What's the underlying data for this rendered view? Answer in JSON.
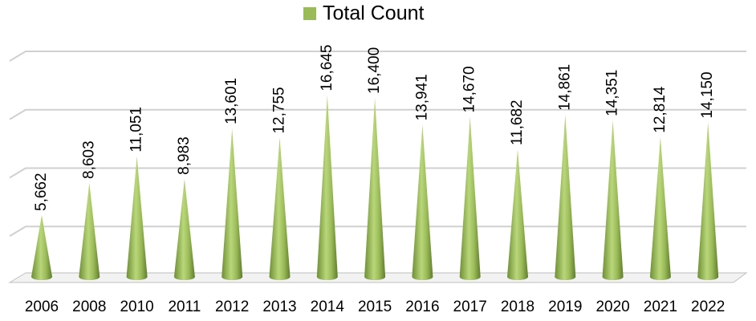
{
  "chart_data": {
    "type": "cone",
    "series": [
      {
        "name": "Total Count",
        "color": "#9bbb59",
        "values": [
          5662,
          8603,
          11051,
          8983,
          13601,
          12755,
          16645,
          16400,
          13941,
          14670,
          11682,
          14861,
          14351,
          12814,
          14150
        ],
        "value_labels": [
          "5,662",
          "8,603",
          "11,051",
          "8,983",
          "13,601",
          "12,755",
          "16,645",
          "16,400",
          "13,941",
          "14,670",
          "11,682",
          "14,861",
          "14,351",
          "12,814",
          "14,150"
        ]
      }
    ],
    "categories": [
      "2006",
      "2008",
      "2010",
      "2011",
      "2012",
      "2013",
      "2014",
      "2015",
      "2016",
      "2017",
      "2018",
      "2019",
      "2020",
      "2021",
      "2022"
    ],
    "ylim": [
      0,
      20000
    ],
    "yticks": [
      0,
      5000,
      10000,
      15000,
      20000
    ],
    "grid": true,
    "legend": "top"
  }
}
